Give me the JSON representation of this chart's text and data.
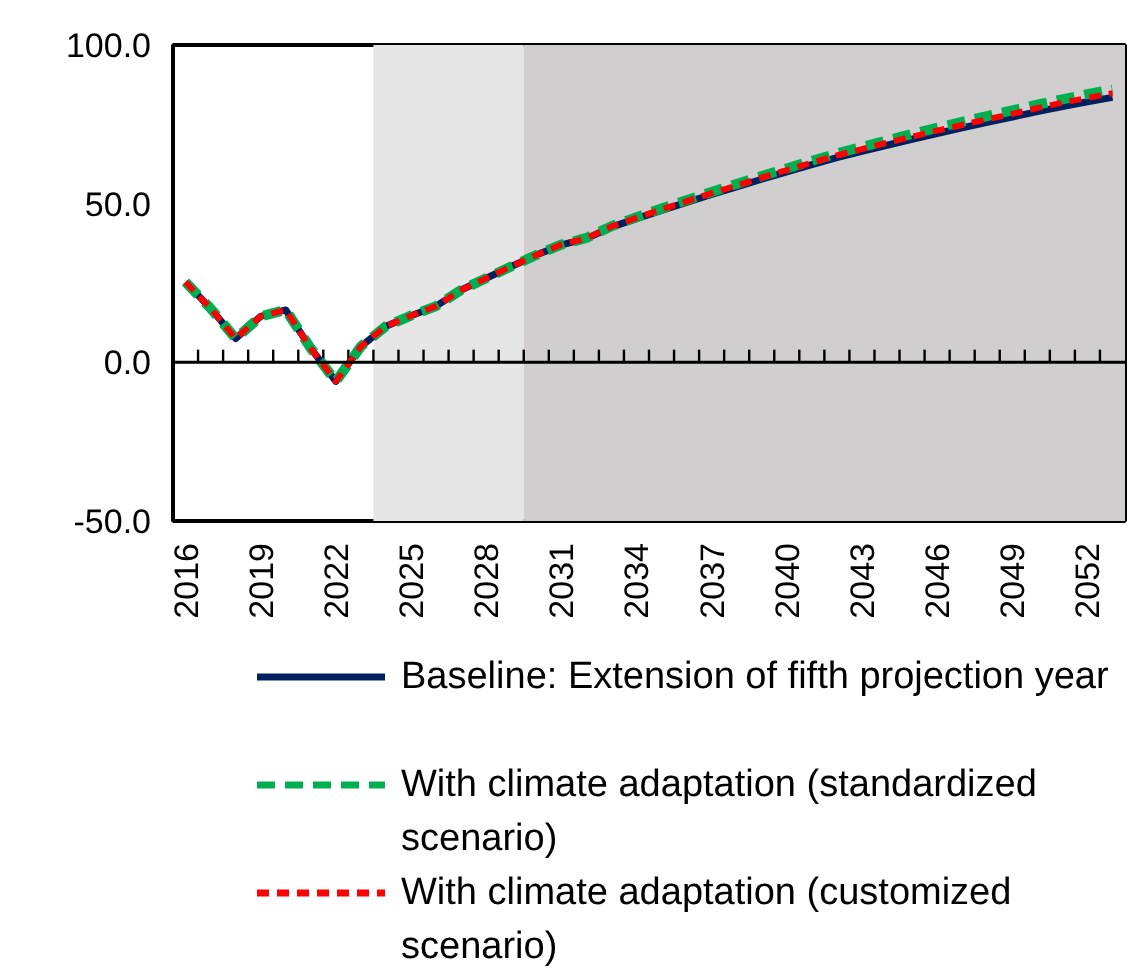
{
  "chart_data": {
    "type": "line",
    "x": [
      2016,
      2017,
      2018,
      2019,
      2020,
      2021,
      2022,
      2023,
      2024,
      2025,
      2026,
      2027,
      2028,
      2029,
      2030,
      2031,
      2032,
      2033,
      2034,
      2035,
      2036,
      2037,
      2038,
      2039,
      2040,
      2041,
      2042,
      2043,
      2044,
      2045,
      2046,
      2047,
      2048,
      2049,
      2050,
      2051,
      2052,
      2053
    ],
    "series": [
      {
        "name": "Baseline: Extension of fifth projection year",
        "color": "#002060",
        "line_style": "solid",
        "values": [
          25.3,
          17,
          7.5,
          14.5,
          16.5,
          4.4,
          -6,
          5,
          11.4,
          14.7,
          17.7,
          22.8,
          26.5,
          30.2,
          33.8,
          37,
          39,
          42.6,
          45.3,
          47.9,
          50.4,
          52.9,
          55.3,
          57.7,
          60.0,
          62.3,
          64.5,
          66.5,
          68.4,
          70.3,
          72.1,
          73.9,
          75.6,
          77.3,
          79.0,
          80.6,
          82.1,
          83.5
        ]
      },
      {
        "name": "With climate adaptation (standardized scenario)",
        "color": "#00b050",
        "line_style": "dashed",
        "values": [
          25.3,
          17,
          7.5,
          14.5,
          16.5,
          4.4,
          -6,
          5,
          11.4,
          14.7,
          17.7,
          22.8,
          26.5,
          30.2,
          33.8,
          37.1,
          39.2,
          42.9,
          45.7,
          48.5,
          51.1,
          53.7,
          56.2,
          58.7,
          61.1,
          63.5,
          65.8,
          67.9,
          69.9,
          72.0,
          73.9,
          75.8,
          77.6,
          79.4,
          81.2,
          82.9,
          84.5,
          86.0
        ]
      },
      {
        "name": "With climate adaptation (customized scenario)",
        "color": "#ff0000",
        "line_style": "dotted",
        "values": [
          25.3,
          17,
          7.5,
          14.5,
          16.5,
          4.4,
          -6,
          5,
          11.4,
          14.7,
          17.7,
          22.8,
          26.5,
          30.2,
          33.8,
          37.1,
          39.1,
          42.8,
          45.5,
          48.2,
          50.7,
          53.3,
          55.7,
          58.2,
          60.6,
          62.9,
          65.2,
          67.2,
          69.2,
          71.1,
          73.0,
          74.8,
          76.6,
          78.3,
          80.1,
          81.8,
          83.3,
          84.8
        ]
      }
    ],
    "xlim": [
      2015.5,
      2053.5
    ],
    "xticks": [
      2016,
      2019,
      2022,
      2025,
      2028,
      2031,
      2034,
      2037,
      2040,
      2043,
      2046,
      2049,
      2052
    ],
    "ylim": [
      -50,
      100
    ],
    "yticks": [
      {
        "value": -50,
        "label": "-50.0"
      },
      {
        "value": 0,
        "label": "0.0"
      },
      {
        "value": 50,
        "label": "50.0"
      },
      {
        "value": 100,
        "label": "100.0"
      }
    ],
    "ref_lines": [
      {
        "axis": "y",
        "value": 0,
        "color": "#000000"
      }
    ],
    "bands": [
      {
        "axis": "x",
        "from": 2023.5,
        "to": 2029.5,
        "color": "#e6e6e6"
      },
      {
        "axis": "x",
        "from": 2029.5,
        "to": 2053.5,
        "color": "#d0cece"
      }
    ],
    "grid": false,
    "legend": "bottom"
  }
}
